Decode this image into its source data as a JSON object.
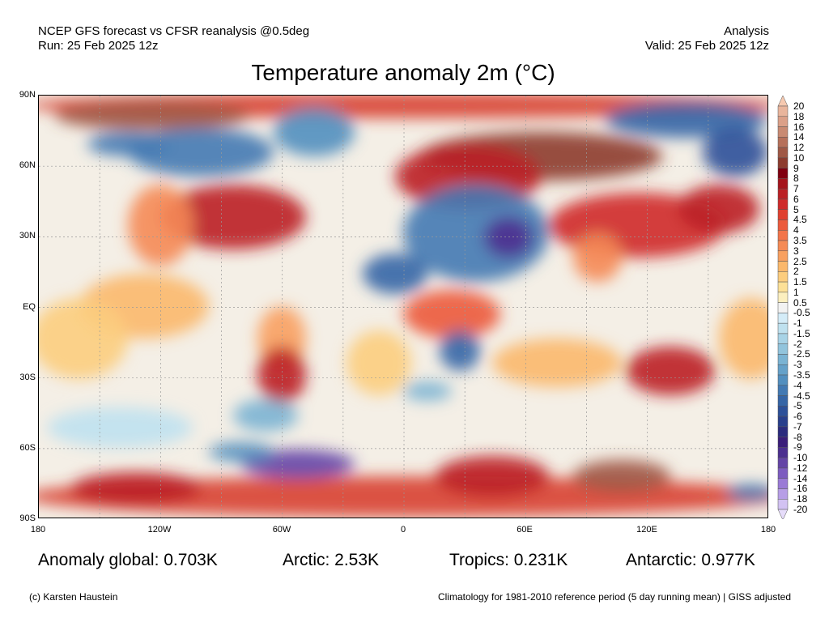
{
  "header": {
    "model": "NCEP GFS forecast vs CFSR reanalysis @0.5deg",
    "run": "Run: 25 Feb 2025 12z",
    "type": "Analysis",
    "valid": "Valid: 25 Feb 2025 12z",
    "title": "Temperature anomaly 2m (°C)"
  },
  "axes": {
    "lat_labels": [
      "90N",
      "60N",
      "30N",
      "EQ",
      "30S",
      "60S",
      "90S"
    ],
    "lon_labels": [
      "180",
      "120W",
      "60W",
      "0",
      "60E",
      "120E",
      "180"
    ]
  },
  "stats": {
    "global": "Anomaly global: 0.703K",
    "arctic": "Arctic: 2.53K",
    "tropics": "Tropics: 0.231K",
    "antarctic": "Antarctic: 0.977K"
  },
  "footer": {
    "credit": "(c) Karsten Haustein",
    "note": "Climatology for 1981-2010 reference period (5 day running mean) | GISS adjusted"
  },
  "colorbar": {
    "labels": [
      "20",
      "18",
      "16",
      "14",
      "12",
      "10",
      "9",
      "8",
      "7",
      "6",
      "5",
      "4.5",
      "4",
      "3.5",
      "3",
      "2.5",
      "2",
      "1.5",
      "1",
      "0.5",
      "-0.5",
      "-1",
      "-1.5",
      "-2",
      "-2.5",
      "-3",
      "-3.5",
      "-4",
      "-4.5",
      "-5",
      "-6",
      "-7",
      "-8",
      "-9",
      "-10",
      "-12",
      "-14",
      "-16",
      "-18",
      "-20"
    ],
    "colors": [
      "#f6c9b0",
      "#e9b59c",
      "#dba088",
      "#c98a72",
      "#b6705a",
      "#a05845",
      "#8d3b2e",
      "#800010",
      "#a5141c",
      "#bb2025",
      "#cf2a2a",
      "#e0402f",
      "#ec5a3c",
      "#f2744a",
      "#f58a55",
      "#f8a060",
      "#fbb86c",
      "#fccd7e",
      "#fde097",
      "#fcefbf",
      "#f2f2f2",
      "#d4ecf8",
      "#bfe1ef",
      "#a8d3e6",
      "#92c4dc",
      "#7ab3d3",
      "#65a1c9",
      "#528fbf",
      "#4279b3",
      "#3565a6",
      "#2c5099",
      "#283f8c",
      "#2b2b7e",
      "#3a1d7a",
      "#4b2f8f",
      "#6444a6",
      "#7d5cc0",
      "#9a7ad6",
      "#b79ee6",
      "#d2c2f2",
      "#e6dcfa"
    ]
  },
  "colors": {
    "ocean_base": "#f4efe6",
    "frame": "#000000"
  }
}
